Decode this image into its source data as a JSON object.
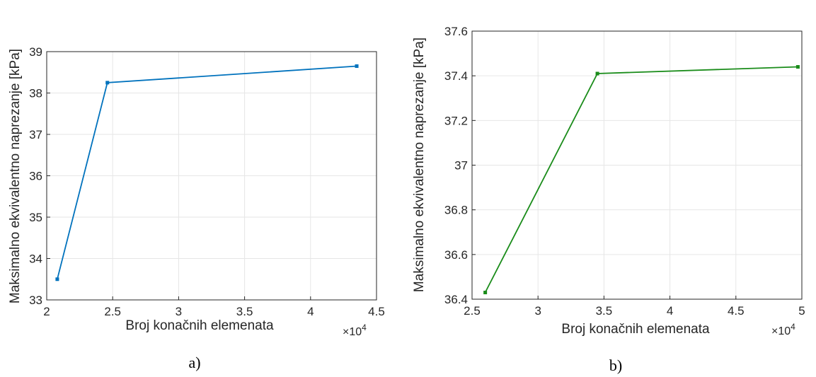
{
  "chart_data": [
    {
      "type": "line",
      "panel_label": "a)",
      "xlabel": "Broj konačnih elemenata",
      "ylabel": "Maksimalno ekvivalentno naprezanje [kPa]",
      "x_multiplier": "×10",
      "x_multiplier_exp": "4",
      "xlim": [
        2,
        4.5
      ],
      "ylim": [
        33,
        39
      ],
      "xticks": [
        "2",
        "2.5",
        "3",
        "3.5",
        "4",
        "4.5"
      ],
      "yticks": [
        "33",
        "34",
        "35",
        "36",
        "37",
        "38",
        "39"
      ],
      "grid": true,
      "color": "#0072BD",
      "series": [
        {
          "x": [
            2.08,
            2.46,
            4.35
          ],
          "y": [
            33.5,
            38.25,
            38.65
          ]
        }
      ]
    },
    {
      "type": "line",
      "panel_label": "b)",
      "xlabel": "Broj konačnih elemenata",
      "ylabel": "Maksimalno ekvivalentno naprezanje [kPa]",
      "x_multiplier": "×10",
      "x_multiplier_exp": "4",
      "xlim": [
        2.5,
        5
      ],
      "ylim": [
        36.4,
        37.6
      ],
      "xticks": [
        "2.5",
        "3",
        "3.5",
        "4",
        "4.5",
        "5"
      ],
      "yticks": [
        "36.4",
        "36.6",
        "36.8",
        "37",
        "37.2",
        "37.4",
        "37.6"
      ],
      "grid": true,
      "color": "#1a8c1a",
      "series": [
        {
          "x": [
            2.6,
            3.45,
            4.97
          ],
          "y": [
            36.43,
            37.41,
            37.44
          ]
        }
      ]
    }
  ]
}
